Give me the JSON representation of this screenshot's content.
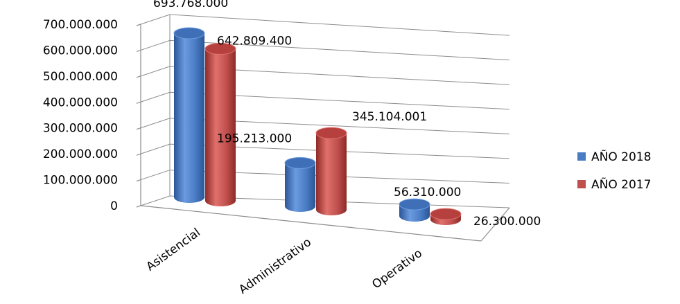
{
  "chart_data": {
    "type": "bar",
    "style": "3d-cylinder",
    "categories": [
      "Asistencial",
      "Administrativo",
      "Operativo"
    ],
    "series": [
      {
        "name": "AÑO 2018",
        "values": [
          693768000,
          195213000,
          56310000
        ],
        "labels": [
          "693.768.000",
          "195.213.000",
          "56.310.000"
        ],
        "color": "#4a7cc4"
      },
      {
        "name": "AÑO 2017",
        "values": [
          642809400,
          345104001,
          26300000
        ],
        "labels": [
          "642.809.400",
          "345.104.001",
          "26.300.000"
        ],
        "color": "#c0504d"
      }
    ],
    "yticks": [
      {
        "value": 0,
        "label": "0"
      },
      {
        "value": 100000000,
        "label": "100.000.000"
      },
      {
        "value": 200000000,
        "label": "200.000.000"
      },
      {
        "value": 300000000,
        "label": "300.000.000"
      },
      {
        "value": 400000000,
        "label": "400.000.000"
      },
      {
        "value": 500000000,
        "label": "500.000.000"
      },
      {
        "value": 600000000,
        "label": "600.000.000"
      },
      {
        "value": 700000000,
        "label": "700.000.000"
      }
    ],
    "ylim": [
      0,
      700000000
    ],
    "grid": true,
    "legend_position": "right",
    "title": "",
    "xlabel": "",
    "ylabel": ""
  }
}
